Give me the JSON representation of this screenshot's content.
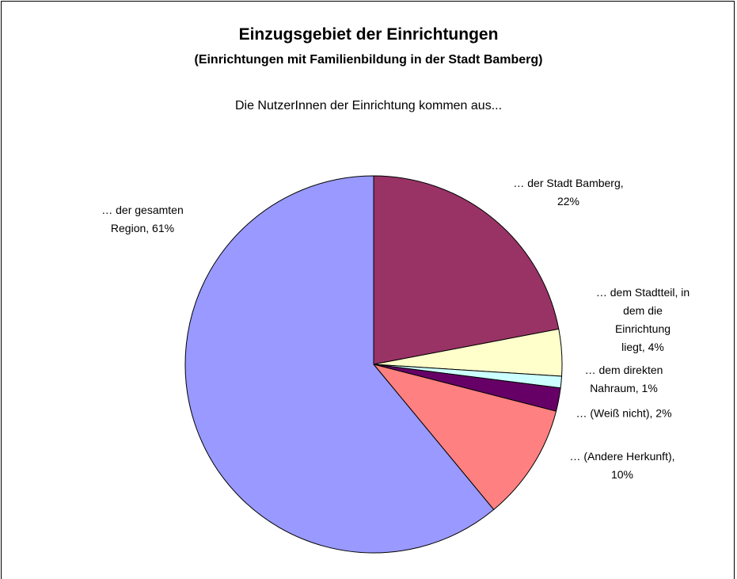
{
  "chart_data": {
    "type": "pie",
    "title": "Einzugsgebiet der Einrichtungen",
    "subtitle": "(Einrichtungen mit Familienbildung in der Stadt Bamberg)",
    "annotation": "Die NutzerInnen der Einrichtung kommen aus...",
    "values": [
      22,
      4,
      1,
      2,
      10,
      61
    ],
    "value_labels": [
      "… der Stadt Bamberg,\n22%",
      "… dem Stadtteil, in\ndem die Einrichtung\nliegt, 4%",
      "… dem direkten\nNahraum, 1%",
      "… (Weiß nicht), 2%",
      "… (Andere Herkunft),\n10%",
      "… der gesamten\nRegion, 61%"
    ],
    "colors": [
      "#993366",
      "#ffffcc",
      "#ccffff",
      "#660066",
      "#ff8080",
      "#9999ff"
    ]
  }
}
